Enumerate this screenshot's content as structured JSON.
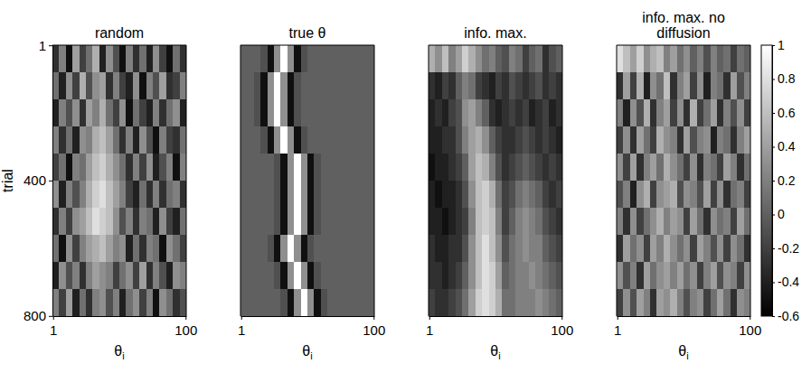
{
  "chart_data": [
    {
      "type": "heatmap",
      "title": "random",
      "x_label": "θi",
      "y_label": "trial",
      "xlim": [
        0.5,
        100.5
      ],
      "xticks": [
        1,
        100
      ],
      "ylim": [
        0.5,
        800.5
      ],
      "yticks": [
        1,
        400,
        800
      ],
      "x_bins": [
        0.5,
        5.5,
        10.5,
        15.5,
        20.5,
        25.5,
        30.5,
        35.5,
        40.5,
        45.5,
        50.5,
        55.5,
        60.5,
        65.5,
        70.5,
        75.5,
        80.5,
        85.5,
        90.5,
        95.5,
        100.5
      ],
      "y_bins": [
        0.5,
        80.5,
        160.5,
        240.5,
        320.5,
        400.5,
        480.5,
        560.5,
        640.5,
        720.5,
        800.5
      ],
      "cells": [
        [
          -0.3,
          0.2,
          -0.5,
          0.4,
          -0.2,
          0.1,
          0.5,
          -0.4,
          0.3,
          -0.1,
          -0.5,
          0.2,
          -0.3,
          0.1,
          -0.4,
          0.3,
          -0.2,
          -0.5,
          0.1,
          -0.3
        ],
        [
          0.1,
          -0.4,
          0.3,
          -0.2,
          0.5,
          -0.1,
          0.3,
          0.4,
          -0.3,
          0.2,
          -0.2,
          -0.4,
          0.3,
          -0.5,
          0.2,
          -0.1,
          0.4,
          -0.3,
          -0.2,
          0.2
        ],
        [
          -0.4,
          0.2,
          -0.1,
          0.3,
          -0.3,
          0.4,
          0.2,
          0.5,
          0.1,
          -0.2,
          0.3,
          -0.5,
          0.1,
          -0.2,
          -0.4,
          0.2,
          -0.3,
          0.1,
          0.3,
          -0.4
        ],
        [
          0.2,
          -0.3,
          0.1,
          -0.4,
          0.3,
          0.2,
          0.5,
          0.6,
          0.4,
          0.1,
          -0.3,
          0.2,
          -0.4,
          0.3,
          -0.1,
          -0.5,
          0.2,
          -0.2,
          -0.3,
          0.1
        ],
        [
          -0.2,
          0.1,
          -0.5,
          0.2,
          0.1,
          0.4,
          0.6,
          0.7,
          0.5,
          0.3,
          0.1,
          -0.3,
          0.2,
          -0.2,
          0.3,
          -0.4,
          -0.1,
          0.2,
          -0.5,
          0.2
        ],
        [
          0.3,
          -0.4,
          0.2,
          -0.1,
          0.2,
          0.5,
          0.7,
          0.8,
          0.6,
          0.4,
          0.2,
          -0.2,
          -0.4,
          0.1,
          -0.3,
          0.2,
          -0.3,
          0.1,
          0.2,
          -0.3
        ],
        [
          -0.3,
          0.2,
          -0.2,
          0.3,
          0.4,
          0.6,
          0.8,
          0.7,
          0.6,
          0.3,
          -0.1,
          0.2,
          -0.3,
          0.2,
          0.1,
          -0.4,
          0.3,
          -0.2,
          -0.4,
          0.1
        ],
        [
          0.1,
          -0.5,
          0.3,
          -0.2,
          0.2,
          0.4,
          0.5,
          0.6,
          0.4,
          0.2,
          0.3,
          -0.4,
          0.1,
          -0.3,
          0.2,
          0.1,
          -0.5,
          0.3,
          0.1,
          -0.2
        ],
        [
          -0.4,
          0.3,
          -0.1,
          0.2,
          -0.3,
          0.2,
          0.4,
          0.3,
          0.2,
          -0.2,
          0.1,
          0.3,
          -0.2,
          0.4,
          -0.3,
          0.2,
          -0.1,
          -0.4,
          0.3,
          0.2
        ],
        [
          0.2,
          -0.2,
          0.4,
          -0.4,
          0.1,
          -0.3,
          0.2,
          0.3,
          -0.1,
          0.2,
          -0.4,
          0.1,
          0.3,
          -0.2,
          0.2,
          -0.5,
          0.3,
          0.1,
          -0.3,
          -0.1
        ]
      ]
    },
    {
      "type": "heatmap",
      "title": "true θ",
      "x_label": "θi",
      "tick_labels": "x",
      "xlim": [
        0.5,
        100.5
      ],
      "xticks": [
        1,
        100
      ],
      "ylim": [
        0.5,
        800.5
      ],
      "x_bins": [
        0.5,
        5.5,
        10.5,
        15.5,
        20.5,
        25.5,
        30.5,
        35.5,
        40.5,
        45.5,
        50.5,
        55.5,
        60.5,
        65.5,
        70.5,
        75.5,
        80.5,
        85.5,
        90.5,
        95.5,
        100.5
      ],
      "y_bins": [
        0.5,
        80.5,
        160.5,
        240.5,
        320.5,
        400.5,
        480.5,
        560.5,
        640.5,
        720.5,
        800.5
      ],
      "cells": [
        [
          0,
          0,
          0,
          -0.1,
          -0.5,
          0.3,
          1,
          0.3,
          -0.5,
          -0.1,
          0,
          0,
          0,
          0,
          0,
          0,
          0,
          0,
          0,
          0
        ],
        [
          0,
          0,
          -0.1,
          -0.5,
          0.3,
          1,
          0.3,
          -0.5,
          -0.1,
          0,
          0,
          0,
          0,
          0,
          0,
          0,
          0,
          0,
          0,
          0
        ],
        [
          0,
          0,
          -0.1,
          -0.5,
          0.3,
          1,
          0.3,
          -0.5,
          -0.1,
          0,
          0,
          0,
          0,
          0,
          0,
          0,
          0,
          0,
          0,
          0
        ],
        [
          0,
          0,
          0,
          -0.1,
          -0.5,
          0.3,
          1,
          0.3,
          -0.5,
          -0.1,
          0,
          0,
          0,
          0,
          0,
          0,
          0,
          0,
          0,
          0
        ],
        [
          0,
          0,
          0,
          0,
          0,
          -0.1,
          -0.5,
          0.3,
          1,
          0.3,
          -0.5,
          -0.1,
          0,
          0,
          0,
          0,
          0,
          0,
          0,
          0
        ],
        [
          0,
          0,
          0,
          0,
          0,
          -0.1,
          -0.5,
          0.3,
          1,
          0.3,
          -0.5,
          -0.1,
          0,
          0,
          0,
          0,
          0,
          0,
          0,
          0
        ],
        [
          0,
          0,
          0,
          0,
          0,
          -0.1,
          -0.5,
          0.3,
          1,
          0.3,
          -0.5,
          -0.1,
          0,
          0,
          0,
          0,
          0,
          0,
          0,
          0
        ],
        [
          0,
          0,
          0,
          0,
          -0.1,
          -0.5,
          0.3,
          1,
          0.3,
          -0.5,
          -0.1,
          0,
          0,
          0,
          0,
          0,
          0,
          0,
          0,
          0
        ],
        [
          0,
          0,
          0,
          0,
          0,
          -0.1,
          -0.5,
          0.3,
          1,
          0.3,
          -0.5,
          -0.1,
          0,
          0,
          0,
          0,
          0,
          0,
          0,
          0
        ],
        [
          0,
          0,
          0,
          0,
          0,
          0,
          -0.1,
          -0.5,
          0.3,
          1,
          0.3,
          -0.5,
          -0.1,
          0,
          0,
          0,
          0,
          0,
          0,
          0
        ]
      ]
    },
    {
      "type": "heatmap",
      "title": "info. max.",
      "x_label": "θi",
      "tick_labels": "x",
      "xlim": [
        0.5,
        100.5
      ],
      "xticks": [
        1,
        100
      ],
      "ylim": [
        0.5,
        800.5
      ],
      "x_bins": [
        0.5,
        5.5,
        10.5,
        15.5,
        20.5,
        25.5,
        30.5,
        35.5,
        40.5,
        45.5,
        50.5,
        55.5,
        60.5,
        65.5,
        70.5,
        75.5,
        80.5,
        85.5,
        90.5,
        95.5,
        100.5
      ],
      "y_bins": [
        0.5,
        80.5,
        160.5,
        240.5,
        320.5,
        400.5,
        480.5,
        560.5,
        640.5,
        720.5,
        800.5
      ],
      "cells": [
        [
          0.5,
          0.3,
          0.6,
          0.2,
          0.4,
          0.7,
          0.5,
          0.3,
          0.1,
          0.2,
          0,
          -0.1,
          0.2,
          0.1,
          -0.2,
          0,
          0.1,
          -0.3,
          -0.1,
          0
        ],
        [
          -0.3,
          -0.4,
          -0.2,
          -0.3,
          0,
          0.2,
          0.1,
          -0.2,
          -0.3,
          -0.4,
          -0.2,
          -0.3,
          -0.1,
          -0.2,
          -0.3,
          -0.2,
          -0.1,
          -0.3,
          -0.2,
          -0.3
        ],
        [
          -0.4,
          -0.3,
          -0.4,
          -0.2,
          -0.1,
          0.3,
          0.4,
          0.2,
          0,
          -0.3,
          -0.4,
          -0.3,
          -0.2,
          -0.3,
          -0.2,
          -0.4,
          -0.3,
          -0.2,
          -0.4,
          -0.3
        ],
        [
          -0.4,
          -0.4,
          -0.3,
          -0.3,
          -0.1,
          0.2,
          0.4,
          0.5,
          0.3,
          0,
          -0.2,
          -0.3,
          -0.3,
          -0.2,
          -0.1,
          -0.2,
          -0.3,
          -0.2,
          -0.3,
          -0.4
        ],
        [
          -0.5,
          -0.4,
          -0.4,
          -0.3,
          -0.2,
          0,
          0.4,
          0.6,
          0.5,
          0.2,
          -0.1,
          -0.3,
          -0.2,
          -0.1,
          0,
          -0.1,
          -0.2,
          -0.3,
          -0.2,
          -0.3
        ],
        [
          -0.4,
          -0.5,
          -0.4,
          -0.4,
          -0.3,
          -0.1,
          0.3,
          0.6,
          0.7,
          0.5,
          0.1,
          -0.2,
          -0.1,
          0.1,
          0.2,
          0.1,
          0,
          -0.2,
          -0.3,
          -0.2
        ],
        [
          -0.4,
          -0.4,
          -0.5,
          -0.4,
          -0.3,
          -0.2,
          0.2,
          0.6,
          0.7,
          0.6,
          0.2,
          -0.2,
          0,
          0.2,
          0.3,
          0.2,
          0.1,
          -0.1,
          -0.2,
          -0.3
        ],
        [
          -0.3,
          -0.4,
          -0.4,
          -0.3,
          -0.3,
          -0.1,
          0.3,
          0.6,
          0.8,
          0.6,
          0.3,
          -0.1,
          0.1,
          0.2,
          0.3,
          0.2,
          0.2,
          0,
          -0.1,
          -0.2
        ],
        [
          -0.3,
          -0.3,
          -0.4,
          -0.3,
          -0.2,
          0,
          0.3,
          0.6,
          0.8,
          0.7,
          0.4,
          0,
          0.1,
          0.2,
          0.2,
          0.3,
          0.2,
          0.1,
          0,
          -0.1
        ],
        [
          -0.2,
          -0.3,
          -0.3,
          -0.2,
          -0.1,
          0.1,
          0.4,
          0.7,
          0.8,
          0.7,
          0.5,
          0.1,
          0.1,
          0.2,
          0.2,
          0.2,
          0.3,
          0.2,
          0.1,
          0
        ]
      ]
    },
    {
      "type": "heatmap",
      "title": "info. max. no diffusion",
      "x_label": "θi",
      "tick_labels": "x",
      "xlim": [
        0.5,
        100.5
      ],
      "xticks": [
        1,
        100
      ],
      "ylim": [
        0.5,
        800.5
      ],
      "x_bins": [
        0.5,
        5.5,
        10.5,
        15.5,
        20.5,
        25.5,
        30.5,
        35.5,
        40.5,
        45.5,
        50.5,
        55.5,
        60.5,
        65.5,
        70.5,
        75.5,
        80.5,
        85.5,
        90.5,
        95.5,
        100.5
      ],
      "y_bins": [
        0.5,
        80.5,
        160.5,
        240.5,
        320.5,
        400.5,
        480.5,
        560.5,
        640.5,
        720.5,
        800.5
      ],
      "cells": [
        [
          0.8,
          0.6,
          0.4,
          0.7,
          0.3,
          0.5,
          0.6,
          0.2,
          0.4,
          0.1,
          0.3,
          0,
          0.2,
          -0.1,
          0.2,
          0,
          0.1,
          -0.2,
          0.1,
          0
        ],
        [
          -0.3,
          0.4,
          -0.2,
          0.5,
          -0.4,
          0.3,
          0.1,
          0.6,
          -0.3,
          0.2,
          0.4,
          -0.2,
          0.3,
          -0.4,
          0.2,
          0.1,
          -0.3,
          0.4,
          -0.1,
          0.2
        ],
        [
          0.2,
          -0.4,
          0.3,
          -0.1,
          0.5,
          -0.3,
          0.2,
          0.4,
          -0.2,
          0.3,
          -0.3,
          0.5,
          -0.2,
          0.1,
          0.4,
          -0.3,
          0.2,
          -0.1,
          0.3,
          -0.2
        ],
        [
          -0.2,
          0.3,
          -0.3,
          0.4,
          0.1,
          -0.2,
          0.5,
          0.3,
          0.2,
          -0.3,
          0.4,
          -0.1,
          0.2,
          0.3,
          -0.4,
          0.2,
          0.1,
          -0.3,
          0.2,
          0.4
        ],
        [
          0.3,
          -0.2,
          0.4,
          -0.3,
          0.2,
          0.4,
          0.1,
          0.5,
          0.3,
          0.1,
          -0.2,
          0.3,
          -0.3,
          0.2,
          0.1,
          -0.2,
          0.4,
          0.2,
          -0.3,
          0.1
        ],
        [
          -0.1,
          0.2,
          -0.4,
          0.3,
          0.5,
          -0.2,
          0.3,
          0.4,
          0.5,
          -0.1,
          0.3,
          0.2,
          -0.1,
          0.4,
          -0.2,
          0.3,
          -0.3,
          0.1,
          0.2,
          -0.2
        ],
        [
          0.2,
          -0.3,
          0.3,
          -0.2,
          0.1,
          0.3,
          0.5,
          0.2,
          0.4,
          0.3,
          -0.2,
          0.4,
          0.1,
          -0.3,
          0.3,
          0.1,
          0.2,
          -0.2,
          0.4,
          0.1
        ],
        [
          -0.3,
          0.4,
          0.1,
          0.3,
          -0.2,
          0.4,
          0.2,
          0.5,
          0.3,
          0.1,
          0.3,
          -0.2,
          0.4,
          0.2,
          -0.1,
          0.3,
          -0.2,
          0.3,
          0.1,
          -0.3
        ],
        [
          0.3,
          -0.1,
          0.2,
          -0.3,
          0.4,
          0.1,
          0.3,
          0.4,
          0.2,
          0.4,
          0.1,
          0.3,
          -0.2,
          0.2,
          0.4,
          -0.1,
          0.3,
          0.2,
          -0.2,
          0.3
        ],
        [
          -0.2,
          0.3,
          -0.1,
          0.4,
          0.2,
          -0.3,
          0.4,
          0.3,
          0.5,
          0.2,
          -0.1,
          0.2,
          0.3,
          -0.2,
          0.1,
          0.4,
          0.1,
          -0.3,
          0.3,
          0.2
        ]
      ],
      "colorbar": {
        "range": [
          -0.6,
          1
        ],
        "ticks": [
          1,
          0.8,
          0.6,
          0.4,
          0.2,
          0,
          -0.2,
          -0.4,
          -0.6
        ]
      }
    }
  ]
}
